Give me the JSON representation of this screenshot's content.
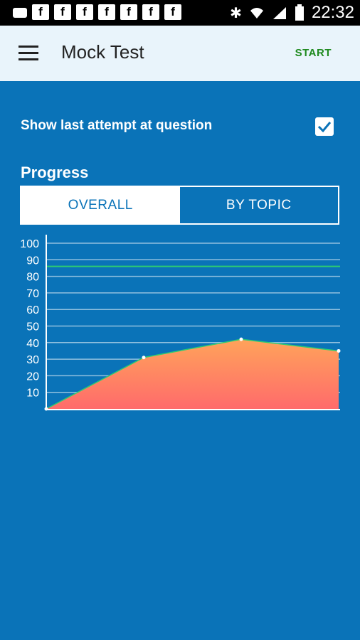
{
  "status_bar": {
    "time": "22:32",
    "icons": [
      "notification-icon",
      "facebook-icon",
      "facebook-icon",
      "facebook-icon",
      "facebook-icon",
      "facebook-icon",
      "facebook-icon",
      "facebook-icon",
      "bluetooth-icon",
      "wifi-icon",
      "signal-icon",
      "battery-icon"
    ],
    "fb_glyph": "f"
  },
  "app_bar": {
    "title": "Mock Test",
    "action_label": "START"
  },
  "settings": {
    "show_last_attempt_label": "Show last attempt at question",
    "show_last_attempt_checked": true
  },
  "progress": {
    "title": "Progress",
    "tabs": [
      {
        "label": "OVERALL",
        "active": true
      },
      {
        "label": "BY TOPIC",
        "active": false
      }
    ]
  },
  "colors": {
    "background": "#0a73b8",
    "appbar": "#e9f4fb",
    "accent_green": "#1f8a1f",
    "target_line": "#2ecc71",
    "area_top": "#ffa35a",
    "area_bottom": "#ff6b6b"
  },
  "chart_data": {
    "type": "area",
    "x": [
      0,
      1,
      2,
      3
    ],
    "values": [
      0,
      31,
      42,
      35
    ],
    "ylim": [
      0,
      100
    ],
    "yticks": [
      10,
      20,
      30,
      40,
      50,
      60,
      70,
      80,
      90,
      100
    ],
    "target_value": 86,
    "grid": true
  }
}
